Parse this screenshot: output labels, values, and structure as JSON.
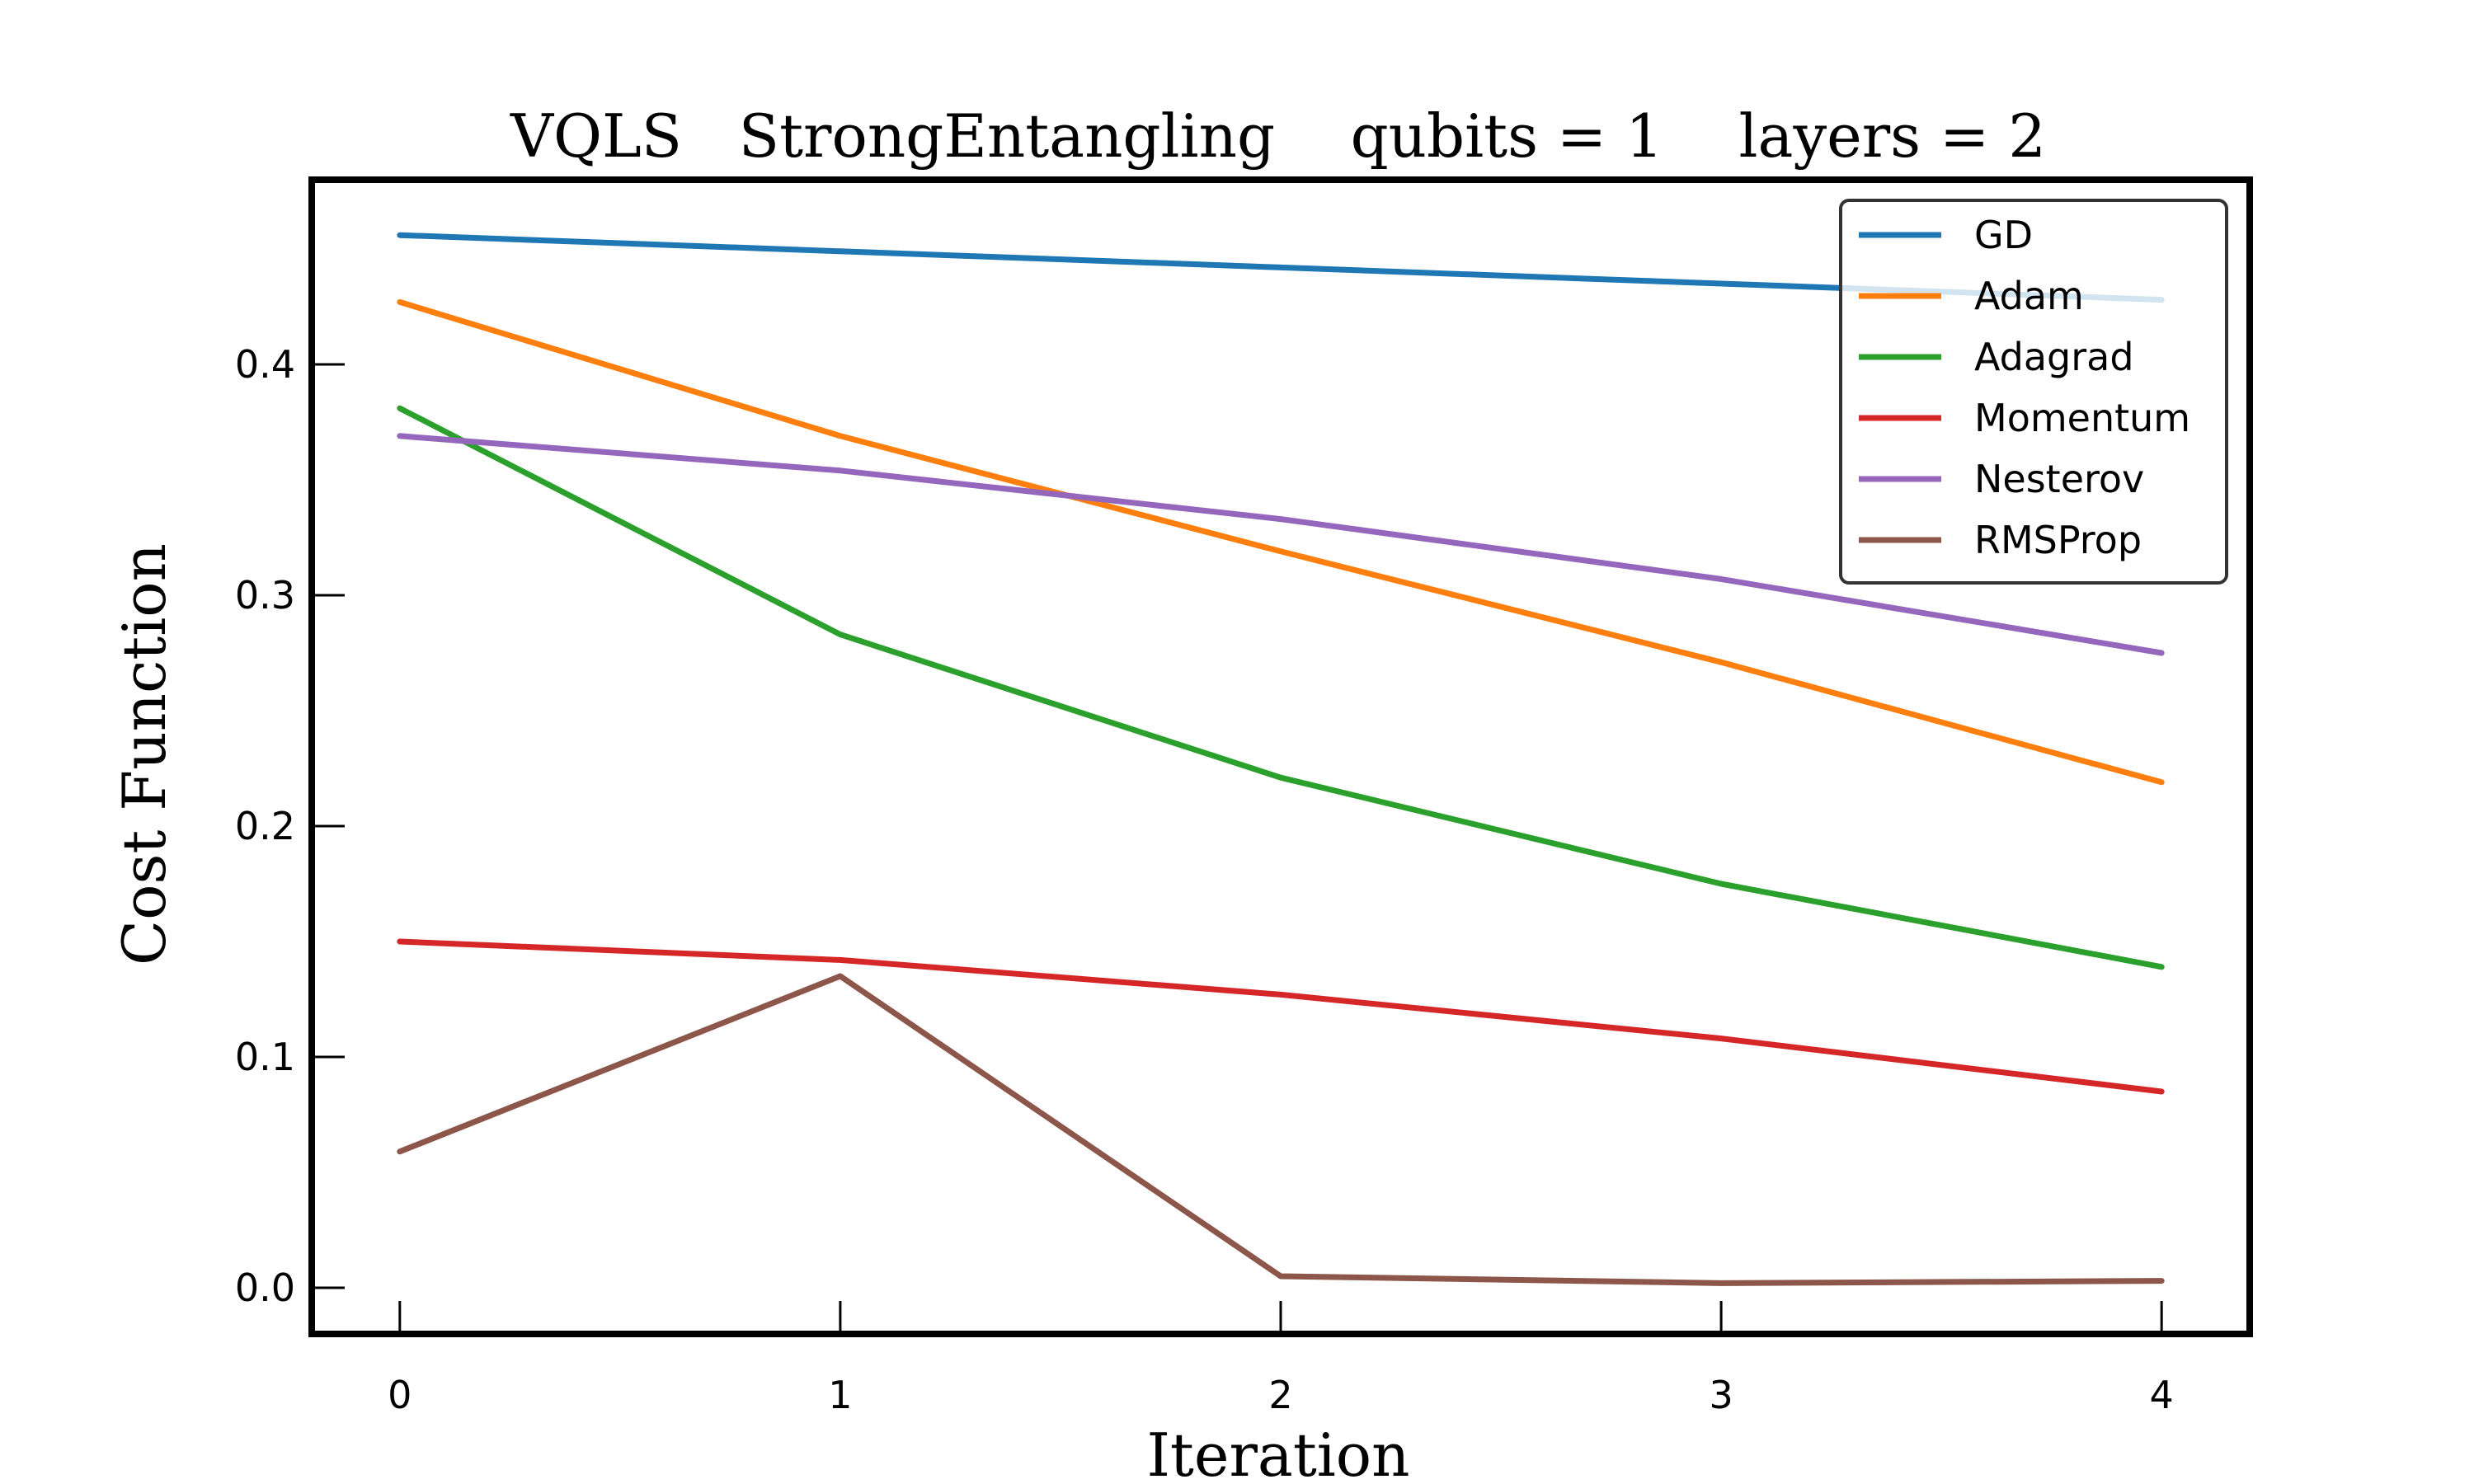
{
  "chart_data": {
    "type": "line",
    "title": "VQLS   StrongEntangling    qubits = 1    layers = 2",
    "xlabel": "Iteration",
    "ylabel": "Cost Function",
    "x": [
      0,
      1,
      2,
      3,
      4
    ],
    "xlim": [
      -0.2,
      4.2
    ],
    "ylim": [
      -0.02,
      0.48
    ],
    "xticks": [
      0,
      1,
      2,
      3,
      4
    ],
    "yticks": [
      0.0,
      0.1,
      0.2,
      0.3,
      0.4
    ],
    "ytick_labels": [
      "0.0",
      "0.1",
      "0.2",
      "0.3",
      "0.4"
    ],
    "grid": false,
    "legend_position": "top-right",
    "series": [
      {
        "name": "GD",
        "color": "#1f77b4",
        "values": [
          0.456,
          0.449,
          0.442,
          0.435,
          0.428
        ]
      },
      {
        "name": "Adam",
        "color": "#ff7f0e",
        "values": [
          0.427,
          0.369,
          0.319,
          0.271,
          0.219
        ]
      },
      {
        "name": "Adagrad",
        "color": "#2ca02c",
        "values": [
          0.381,
          0.283,
          0.221,
          0.175,
          0.139
        ]
      },
      {
        "name": "Momentum",
        "color": "#d62728",
        "values": [
          0.15,
          0.142,
          0.127,
          0.108,
          0.085
        ]
      },
      {
        "name": "Nesterov",
        "color": "#9467bd",
        "values": [
          0.369,
          0.354,
          0.333,
          0.307,
          0.275
        ]
      },
      {
        "name": "RMSProp",
        "color": "#8c564b",
        "values": [
          0.059,
          0.135,
          0.005,
          0.002,
          0.003
        ]
      }
    ]
  }
}
